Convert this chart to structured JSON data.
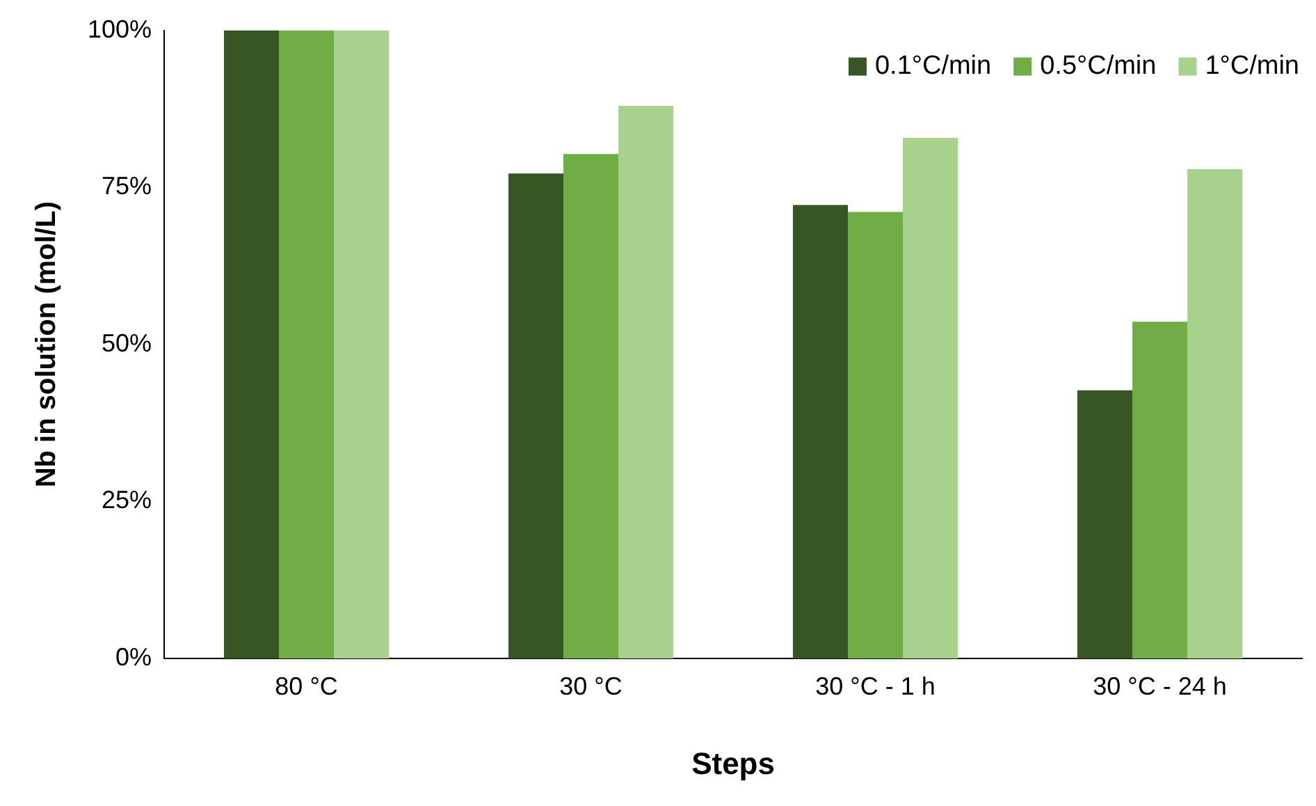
{
  "chart_data": {
    "type": "bar",
    "xlabel": "Steps",
    "ylabel": "Nb in solution (mol/L)",
    "categories": [
      "80 °C",
      "30 °C",
      "30 °C - 1 h",
      "30 °C - 24 h"
    ],
    "series": [
      {
        "name": "0.1°C/min",
        "color": "#375623",
        "values": [
          100,
          77.2,
          72.2,
          42.7
        ]
      },
      {
        "name": "0.5°C/min",
        "color": "#70ad47",
        "values": [
          100,
          80.3,
          71.1,
          53.6
        ]
      },
      {
        "name": "1°C/min",
        "color": "#a9d18e",
        "values": [
          100,
          88.0,
          82.9,
          77.9
        ]
      }
    ],
    "ylim": [
      0,
      100
    ],
    "yticks": [
      {
        "value": 0,
        "label": "0%"
      },
      {
        "value": 25,
        "label": "25%"
      },
      {
        "value": 50,
        "label": "50%"
      },
      {
        "value": 75,
        "label": "75%"
      },
      {
        "value": 100,
        "label": "100%"
      }
    ],
    "grid": false,
    "legend": "top right"
  }
}
